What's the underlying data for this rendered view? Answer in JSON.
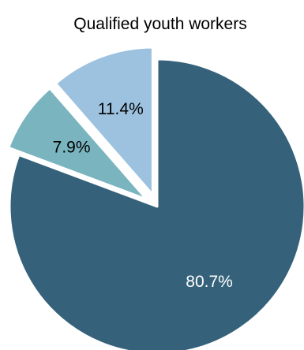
{
  "chart_data": {
    "type": "pie",
    "title": "Qualified youth workers",
    "slices": [
      {
        "label": "80.7%",
        "value": 80.7,
        "color": "#35627a",
        "label_color": "#ffffff",
        "exploded": false
      },
      {
        "label": "7.9%",
        "value": 7.9,
        "color": "#7ab5bf",
        "label_color": "#000000",
        "exploded": true
      },
      {
        "label": "11.4%",
        "value": 11.4,
        "color": "#9cc2e0",
        "label_color": "#000000",
        "exploded": true
      }
    ],
    "start_angle_deg": 0,
    "direction": "clockwise",
    "legend": "none"
  }
}
